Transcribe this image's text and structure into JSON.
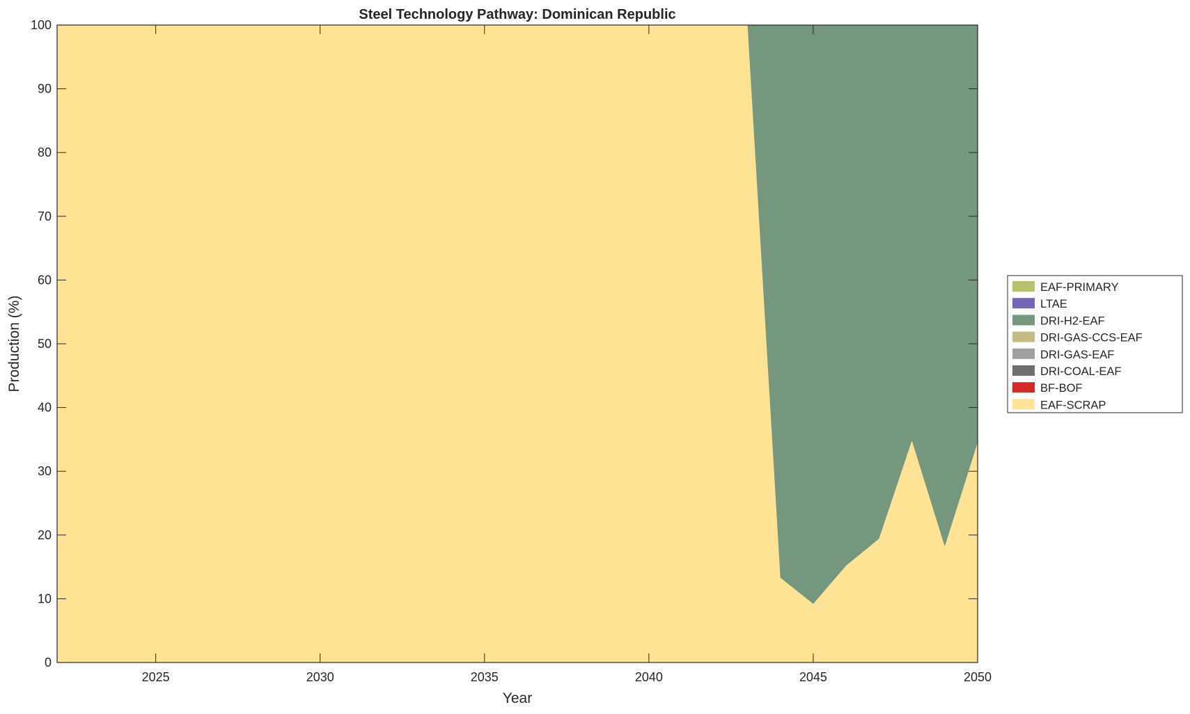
{
  "chart_data": {
    "type": "area",
    "stacked": true,
    "title": "Steel Technology Pathway: Dominican Republic",
    "xlabel": "Year",
    "ylabel": "Production (%)",
    "xlim": [
      2022,
      2050
    ],
    "ylim": [
      0,
      100
    ],
    "xticks": [
      2025,
      2030,
      2035,
      2040,
      2045,
      2050
    ],
    "yticks": [
      0,
      10,
      20,
      30,
      40,
      50,
      60,
      70,
      80,
      90,
      100
    ],
    "grid": false,
    "legend_placement": "right",
    "x": [
      2022,
      2023,
      2024,
      2025,
      2026,
      2027,
      2028,
      2029,
      2030,
      2031,
      2032,
      2033,
      2034,
      2035,
      2036,
      2037,
      2038,
      2039,
      2040,
      2041,
      2042,
      2043,
      2044,
      2045,
      2046,
      2047,
      2048,
      2049,
      2050
    ],
    "series": [
      {
        "name": "EAF-SCRAP",
        "color": "#fee394",
        "values": [
          100,
          100,
          100,
          100,
          100,
          100,
          100,
          100,
          100,
          100,
          100,
          100,
          100,
          100,
          100,
          100,
          100,
          100,
          100,
          100,
          100,
          100,
          13.3,
          9.2,
          15.2,
          19.4,
          34.8,
          18.2,
          34.5
        ]
      },
      {
        "name": "BF-BOF",
        "color": "#d62a28",
        "values": [
          0,
          0,
          0,
          0,
          0,
          0,
          0,
          0,
          0,
          0,
          0,
          0,
          0,
          0,
          0,
          0,
          0,
          0,
          0,
          0,
          0,
          0,
          0,
          0,
          0,
          0,
          0,
          0,
          0
        ]
      },
      {
        "name": "DRI-COAL-EAF",
        "color": "#6e6e6e",
        "values": [
          0,
          0,
          0,
          0,
          0,
          0,
          0,
          0,
          0,
          0,
          0,
          0,
          0,
          0,
          0,
          0,
          0,
          0,
          0,
          0,
          0,
          0,
          0,
          0,
          0,
          0,
          0,
          0,
          0
        ]
      },
      {
        "name": "DRI-GAS-EAF",
        "color": "#a0a0a0",
        "values": [
          0,
          0,
          0,
          0,
          0,
          0,
          0,
          0,
          0,
          0,
          0,
          0,
          0,
          0,
          0,
          0,
          0,
          0,
          0,
          0,
          0,
          0,
          0,
          0,
          0,
          0,
          0,
          0,
          0
        ]
      },
      {
        "name": "DRI-GAS-CCS-EAF",
        "color": "#c7bb80",
        "values": [
          0,
          0,
          0,
          0,
          0,
          0,
          0,
          0,
          0,
          0,
          0,
          0,
          0,
          0,
          0,
          0,
          0,
          0,
          0,
          0,
          0,
          0,
          0,
          0,
          0,
          0,
          0,
          0,
          0
        ]
      },
      {
        "name": "DRI-H2-EAF",
        "color": "#75977d",
        "values": [
          0,
          0,
          0,
          0,
          0,
          0,
          0,
          0,
          0,
          0,
          0,
          0,
          0,
          0,
          0,
          0,
          0,
          0,
          0,
          0,
          0,
          0,
          86.7,
          90.8,
          84.8,
          80.6,
          65.2,
          81.8,
          65.5
        ]
      },
      {
        "name": "LTAE",
        "color": "#7566b8",
        "values": [
          0,
          0,
          0,
          0,
          0,
          0,
          0,
          0,
          0,
          0,
          0,
          0,
          0,
          0,
          0,
          0,
          0,
          0,
          0,
          0,
          0,
          0,
          0,
          0,
          0,
          0,
          0,
          0,
          0
        ]
      },
      {
        "name": "EAF-PRIMARY",
        "color": "#b8c36b",
        "values": [
          0,
          0,
          0,
          0,
          0,
          0,
          0,
          0,
          0,
          0,
          0,
          0,
          0,
          0,
          0,
          0,
          0,
          0,
          0,
          0,
          0,
          0,
          0,
          0,
          0,
          0,
          0,
          0,
          0
        ]
      }
    ],
    "legend_order": [
      "EAF-PRIMARY",
      "LTAE",
      "DRI-H2-EAF",
      "DRI-GAS-CCS-EAF",
      "DRI-GAS-EAF",
      "DRI-COAL-EAF",
      "BF-BOF",
      "EAF-SCRAP"
    ]
  }
}
